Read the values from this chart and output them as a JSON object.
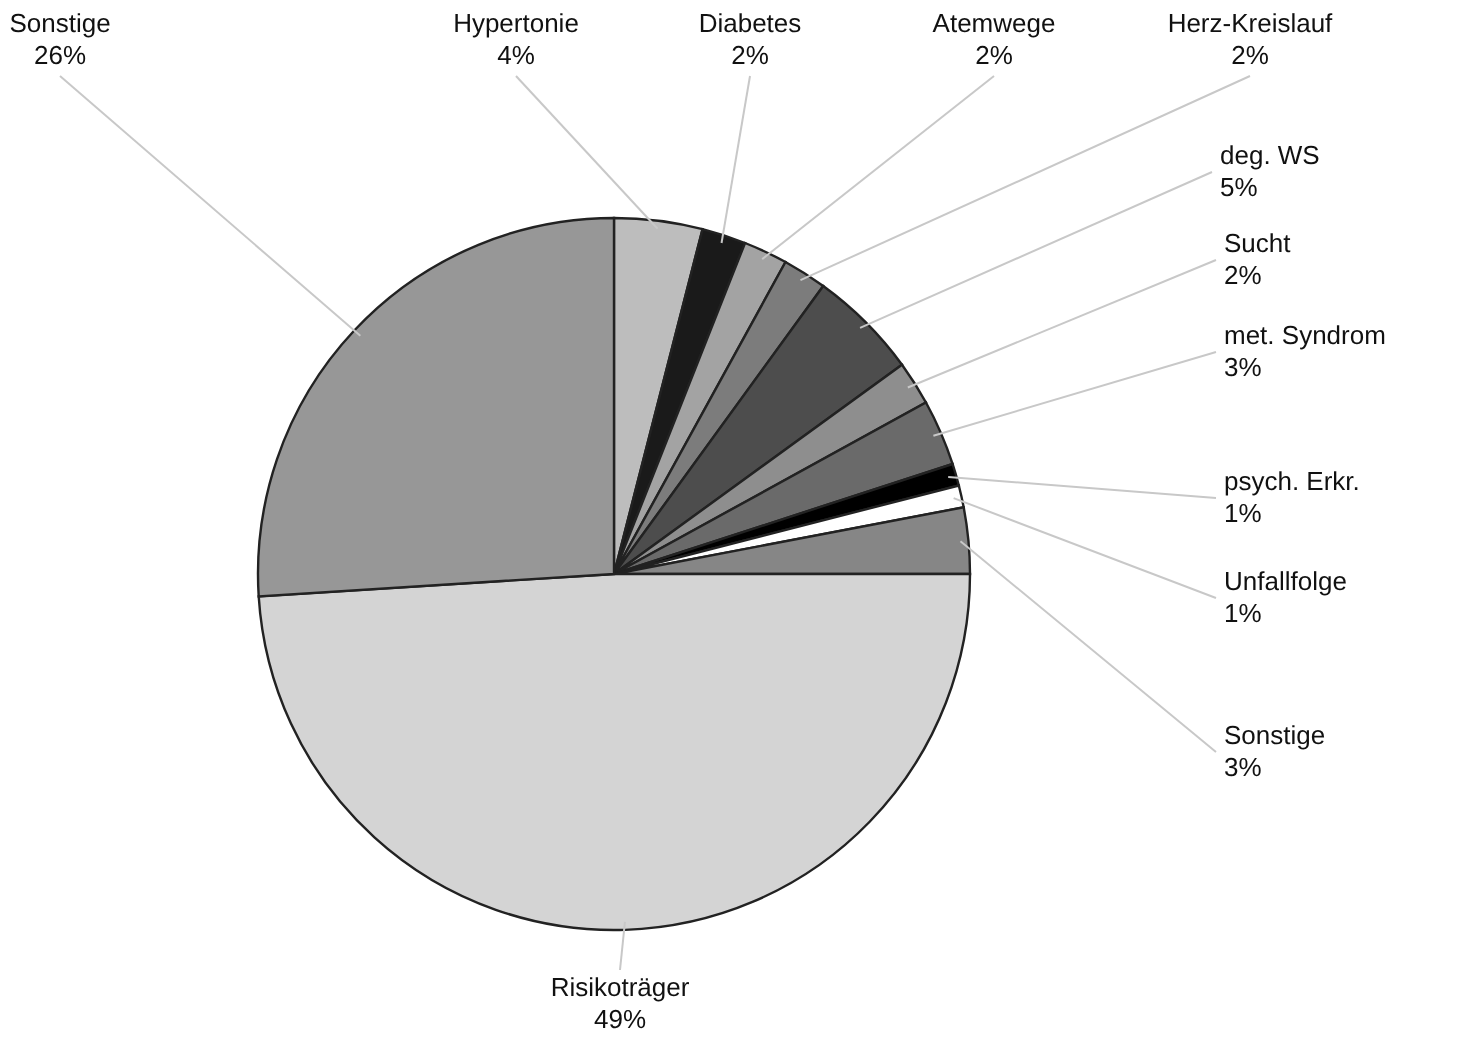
{
  "chart_data": {
    "type": "pie",
    "categories": [
      "Hypertonie",
      "Diabetes",
      "Atemwege",
      "Herz-Kreislauf",
      "deg. WS",
      "Sucht",
      "met. Syndrom",
      "psych. Erkr.",
      "Unfallfolge",
      "Sonstige",
      "Risikoträger",
      "Sonstige"
    ],
    "values": [
      4,
      2,
      2,
      2,
      5,
      2,
      3,
      1,
      1,
      3,
      49,
      26
    ],
    "value_labels": [
      "4%",
      "2%",
      "2%",
      "2%",
      "5%",
      "2%",
      "3%",
      "1%",
      "1%",
      "3%",
      "49%",
      "26%"
    ],
    "colors": [
      "#bdbdbd",
      "#1a1a1a",
      "#a3a3a3",
      "#7c7c7c",
      "#4d4d4d",
      "#8e8e8e",
      "#6a6a6a",
      "#000000",
      "#ffffff",
      "#868686",
      "#d4d4d4",
      "#979797"
    ]
  }
}
